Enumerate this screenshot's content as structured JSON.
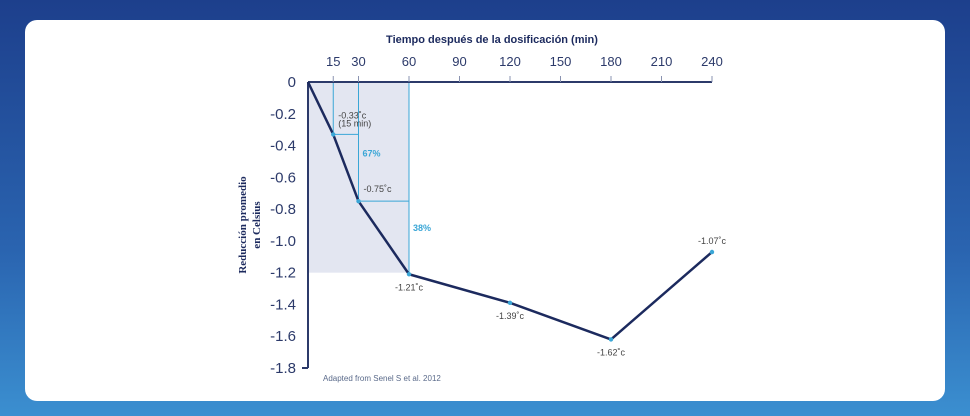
{
  "chart_data": {
    "type": "line",
    "title": "Tiempo después de la dosificación (min)",
    "xlabel": "Tiempo después de la dosificación (min)",
    "ylabel": [
      "Reducción promedio",
      "en Celsius"
    ],
    "x_ticks": [
      15,
      30,
      60,
      90,
      120,
      150,
      180,
      210,
      240
    ],
    "y_ticks": [
      0,
      -0.2,
      -0.4,
      -0.6,
      -0.8,
      -1.0,
      -1.2,
      -1.4,
      -1.6,
      -1.8
    ],
    "y_tick_labels": [
      "0",
      "-0.2",
      "-0.4",
      "-0.6",
      "-0.8",
      "-1.0",
      "-1.2",
      "-1.4",
      "-1.6",
      "-1.8"
    ],
    "xlim": [
      0,
      240
    ],
    "ylim": [
      -1.8,
      0
    ],
    "x_axis_position": "top",
    "x": [
      0,
      15,
      30,
      60,
      120,
      180,
      240
    ],
    "y": [
      0,
      -0.33,
      -0.75,
      -1.21,
      -1.39,
      -1.62,
      -1.07
    ],
    "data_labels": [
      {
        "x": 15,
        "y": -0.33,
        "text": "-0.33˚c",
        "sub": "(15 min)"
      },
      {
        "x": 30,
        "y": -0.75,
        "text": "-0.75˚c"
      },
      {
        "x": 60,
        "y": -1.21,
        "text": "-1.21˚c"
      },
      {
        "x": 120,
        "y": -1.39,
        "text": "-1.39˚c"
      },
      {
        "x": 180,
        "y": -1.62,
        "text": "-1.62˚c"
      },
      {
        "x": 240,
        "y": -1.07,
        "text": "-1.07˚c"
      }
    ],
    "annotations": [
      {
        "text": "67%",
        "x": 30,
        "y": -0.45
      },
      {
        "text": "38%",
        "x": 60,
        "y": -0.92
      }
    ],
    "shaded_region": {
      "x": [
        0,
        60
      ],
      "y": [
        -1.2,
        0
      ]
    },
    "source": "Adapted from Senel S et al. 2012",
    "colors": {
      "line": "#1c2a5e",
      "accent": "#3aa6d6",
      "shade": "#e3e6f1",
      "axis": "#2c3a6a"
    },
    "grid": false
  }
}
